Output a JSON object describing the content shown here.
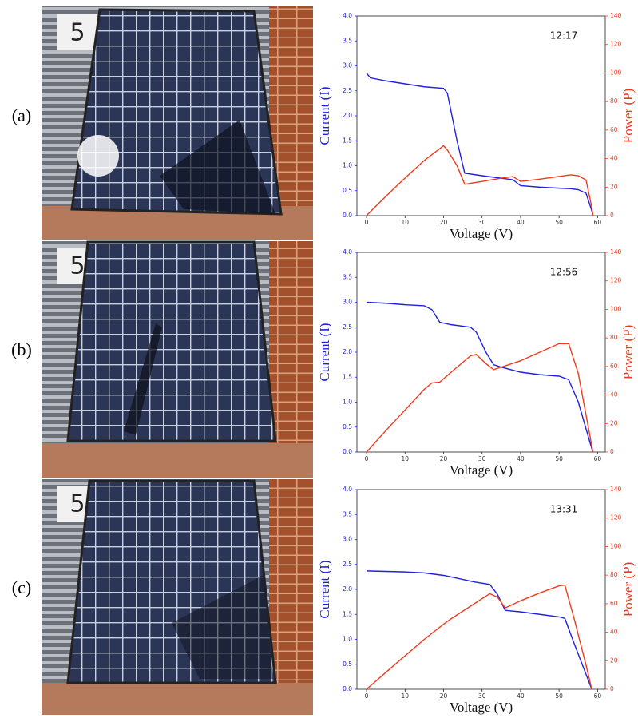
{
  "chart_data": [
    {
      "type": "line",
      "panel_label": "(a)",
      "annotation": "12:17",
      "xlabel": "Voltage (V)",
      "ylabel": "Current (I)",
      "y2label": "Power (P)",
      "xlim": [
        -2.5,
        62
      ],
      "xticks": [
        0,
        10,
        20,
        30,
        40,
        50,
        60
      ],
      "ylim": [
        0,
        4
      ],
      "yticks": [
        {
          "value": 0,
          "label": "0.0"
        },
        0.5,
        {
          "value": 1,
          "label": "1.0"
        },
        1.5,
        {
          "value": 2,
          "label": "2.0"
        },
        2.5,
        {
          "value": 3,
          "label": "3.0"
        },
        3.5,
        {
          "value": 4,
          "label": "4.0"
        }
      ],
      "y2lim": [
        0,
        140
      ],
      "y2ticks": [
        0,
        20,
        40,
        60,
        80,
        100,
        120,
        140
      ],
      "x": [
        0,
        1,
        5,
        10,
        15,
        20,
        21,
        23.5,
        25.5,
        30,
        35,
        38,
        40,
        45,
        50,
        53,
        55,
        57,
        58.5,
        58.8
      ],
      "series": [
        {
          "color": "#2020e0",
          "values": [
            2.85,
            2.76,
            2.7,
            2.64,
            2.58,
            2.55,
            2.45,
            1.5,
            0.85,
            0.8,
            0.75,
            0.72,
            0.6,
            0.57,
            0.55,
            0.54,
            0.52,
            0.45,
            0.1,
            0
          ]
        },
        {
          "color": "#f03a1e",
          "axis": "y2",
          "values": [
            0,
            2.8,
            13.5,
            26.4,
            38.7,
            49,
            46,
            35,
            22,
            24,
            26.3,
            27.4,
            24,
            25.6,
            27.5,
            28.6,
            28,
            25,
            6,
            0
          ]
        }
      ]
    },
    {
      "type": "line",
      "panel_label": "(b)",
      "annotation": "12:56",
      "xlabel": "Voltage (V)",
      "ylabel": "Current (I)",
      "y2label": "Power (P)",
      "xlim": [
        -2.5,
        62
      ],
      "xticks": [
        0,
        10,
        20,
        30,
        40,
        50,
        60
      ],
      "ylim": [
        0,
        4
      ],
      "yticks": [
        {
          "value": 0,
          "label": "0.0"
        },
        0.5,
        {
          "value": 1,
          "label": "1.0"
        },
        1.5,
        {
          "value": 2,
          "label": "2.0"
        },
        2.5,
        {
          "value": 3,
          "label": "3.0"
        },
        3.5,
        {
          "value": 4,
          "label": "4.0"
        }
      ],
      "y2lim": [
        0,
        140
      ],
      "y2ticks": [
        0,
        20,
        40,
        60,
        80,
        100,
        120,
        140
      ],
      "x": [
        0,
        5,
        10,
        15,
        17,
        19,
        22,
        27,
        28.5,
        31,
        33,
        35,
        40,
        45,
        50,
        52.5,
        55,
        58,
        58.8
      ],
      "series": [
        {
          "color": "#2020e0",
          "values": [
            3.0,
            2.98,
            2.95,
            2.93,
            2.85,
            2.6,
            2.55,
            2.5,
            2.4,
            2.0,
            1.75,
            1.7,
            1.6,
            1.55,
            1.52,
            1.45,
            1.0,
            0.2,
            0
          ]
        },
        {
          "color": "#f03a1e",
          "axis": "y2",
          "values": [
            0,
            15,
            29.5,
            44,
            48.5,
            49,
            56,
            67.5,
            68.4,
            62,
            57.8,
            59.5,
            64,
            70,
            76,
            76,
            55,
            11.6,
            0
          ]
        }
      ]
    },
    {
      "type": "line",
      "panel_label": "(c)",
      "annotation": "13:31",
      "xlabel": "Voltage (V)",
      "ylabel": "Current (I)",
      "y2label": "Power (P)",
      "xlim": [
        -2.5,
        62
      ],
      "xticks": [
        0,
        10,
        20,
        30,
        40,
        50,
        60
      ],
      "ylim": [
        0,
        4
      ],
      "yticks": [
        {
          "value": 0,
          "label": "0.0"
        },
        0.5,
        {
          "value": 1,
          "label": "1.0"
        },
        1.5,
        {
          "value": 2,
          "label": "2.0"
        },
        2.5,
        {
          "value": 3,
          "label": "3.0"
        },
        3.5,
        {
          "value": 4,
          "label": "4.0"
        }
      ],
      "y2lim": [
        0,
        140
      ],
      "y2ticks": [
        0,
        20,
        40,
        60,
        80,
        100,
        120,
        140
      ],
      "x": [
        0,
        5,
        10,
        15,
        20,
        22,
        28,
        32,
        34,
        36,
        40,
        45,
        50,
        51.5,
        54,
        57,
        58.5
      ],
      "series": [
        {
          "color": "#2020e0",
          "values": [
            2.37,
            2.36,
            2.35,
            2.33,
            2.28,
            2.25,
            2.15,
            2.1,
            1.9,
            1.58,
            1.55,
            1.5,
            1.45,
            1.42,
            0.9,
            0.3,
            0
          ]
        },
        {
          "color": "#f03a1e",
          "axis": "y2",
          "values": [
            0,
            11.8,
            23.5,
            35,
            45.6,
            49.5,
            60,
            67,
            64.6,
            57,
            62,
            67.5,
            72.5,
            73,
            48.6,
            17,
            0
          ]
        }
      ]
    }
  ]
}
